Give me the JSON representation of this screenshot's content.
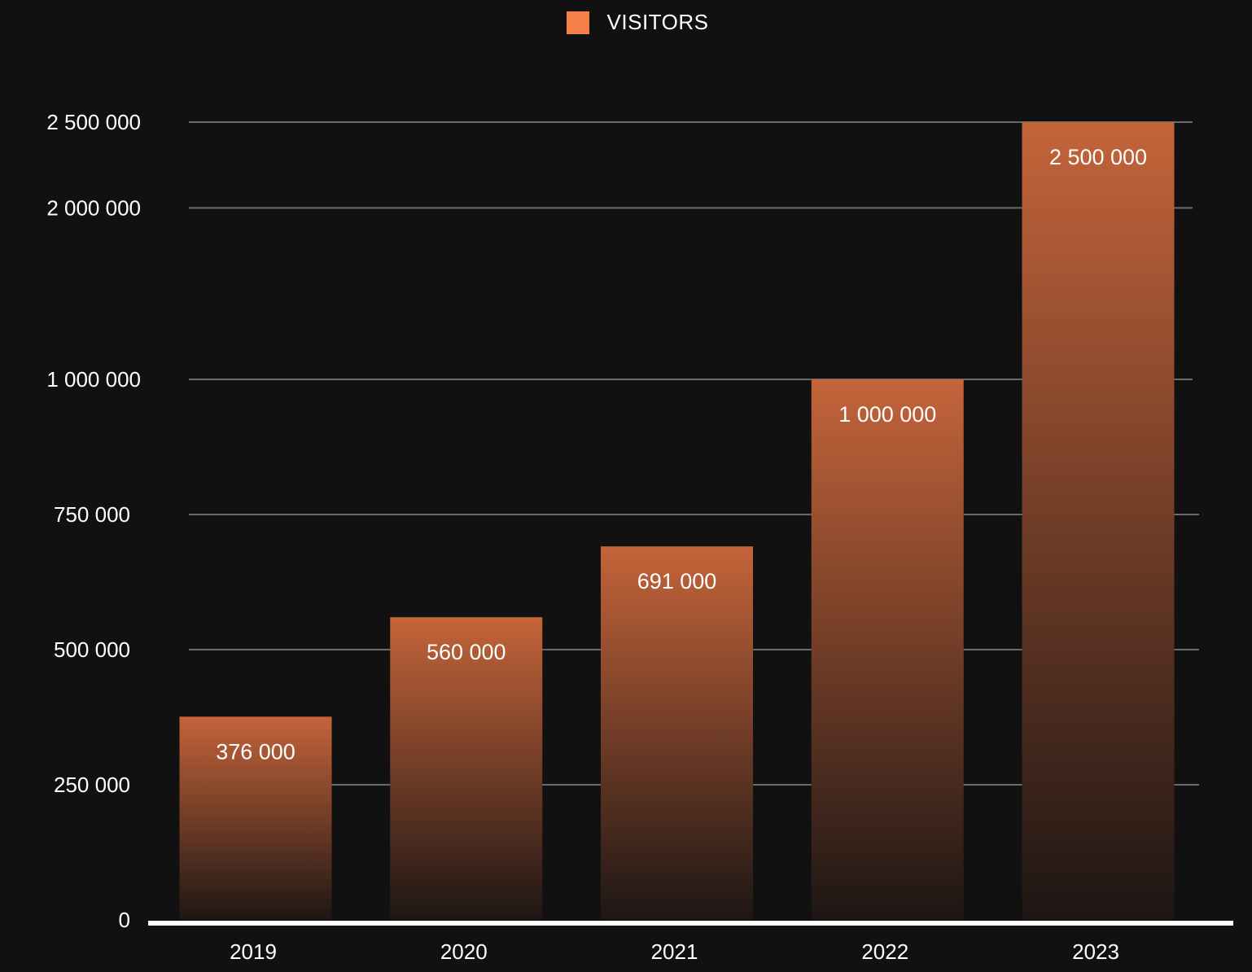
{
  "chart_data": {
    "type": "bar",
    "legend": {
      "label": "VISITORS",
      "color": "#f47f47",
      "position": "top-center"
    },
    "categories": [
      "2019",
      "2020",
      "2021",
      "2022",
      "2023"
    ],
    "series": [
      {
        "name": "VISITORS",
        "values": [
          376000,
          560000,
          691000,
          1000000,
          2500000
        ],
        "data_labels": [
          "376 000",
          "560 000",
          "691 000",
          "1 000 000",
          "2 500 000"
        ]
      }
    ],
    "y_ticks": [
      {
        "value": 0,
        "label": "0"
      },
      {
        "value": 250000,
        "label": "250 000"
      },
      {
        "value": 500000,
        "label": "500 000"
      },
      {
        "value": 750000,
        "label": "750 000"
      },
      {
        "value": 1000000,
        "label": "1 000 000"
      },
      {
        "value": 2000000,
        "label": "2 000 000"
      },
      {
        "value": 2500000,
        "label": "2 500 000"
      }
    ],
    "ylim": [
      0,
      2500000
    ],
    "grid": true,
    "colors": {
      "background": "#111111",
      "bar_top": "#c4643a",
      "bar_bottom": "#1e1614",
      "grid": "#6a6a6a",
      "baseline": "#ffffff"
    }
  }
}
